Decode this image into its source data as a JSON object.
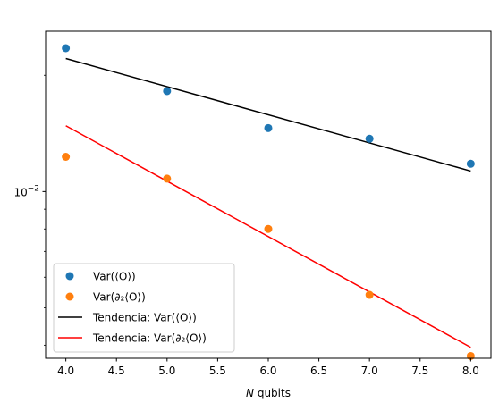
{
  "chart_data": {
    "type": "scatter",
    "xlabel_italic": "N",
    "xlabel_rest": " qubits",
    "ylabel": "",
    "title": "",
    "xlim": [
      3.8,
      8.2
    ],
    "ylim": [
      0.0037,
      0.026
    ],
    "yscale": "log",
    "grid": false,
    "legend_position": "lower-left",
    "x_ticks": [
      4.0,
      4.5,
      5.0,
      5.5,
      6.0,
      6.5,
      7.0,
      7.5,
      8.0
    ],
    "x_tick_labels": [
      "4.0",
      "4.5",
      "5.0",
      "5.5",
      "6.0",
      "6.5",
      "7.0",
      "7.5",
      "8.0"
    ],
    "y_major_tick": {
      "value": 0.01,
      "label_base": "10",
      "label_exp": "−2"
    },
    "y_minor_ticks": [
      0.004,
      0.005,
      0.006,
      0.007,
      0.008,
      0.009,
      0.02
    ],
    "series": [
      {
        "name": "Var(⟨O⟩)",
        "kind": "points",
        "color": "#1f77b4",
        "x": [
          4,
          5,
          6,
          7,
          8
        ],
        "y": [
          0.0235,
          0.0182,
          0.0146,
          0.0137,
          0.0118
        ]
      },
      {
        "name": "Var(∂₂⟨O⟩)",
        "kind": "points",
        "color": "#ff7f0e",
        "x": [
          4,
          5,
          6,
          7,
          8
        ],
        "y": [
          0.0123,
          0.0108,
          0.008,
          0.0054,
          0.00375
        ]
      },
      {
        "name": "Tendencia: Var(⟨O⟩)",
        "kind": "line",
        "color": "#000000",
        "x": [
          4,
          8
        ],
        "y": [
          0.0221,
          0.0113
        ]
      },
      {
        "name": "Tendencia: Var(∂₂⟨O⟩)",
        "kind": "line",
        "color": "#ff0000",
        "x": [
          4,
          8
        ],
        "y": [
          0.0148,
          0.00395
        ]
      }
    ]
  }
}
